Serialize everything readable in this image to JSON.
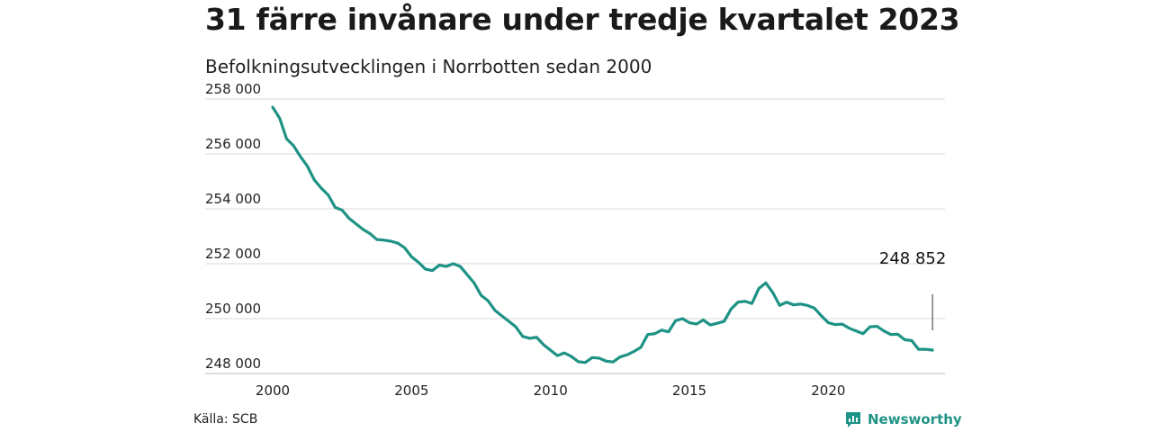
{
  "header": {
    "title": "31 färre invånare under tredje kvartalet 2023",
    "subtitle": "Befolkningsutvecklingen i Norrbotten sedan 2000"
  },
  "footer": {
    "source": "Källa: SCB",
    "brand": "Newsworthy"
  },
  "colors": {
    "line": "#1e9385",
    "grid": "#d9d9d9",
    "brand": "#1e9385"
  },
  "chart_data": {
    "type": "line",
    "title": "31 färre invånare under tredje kvartalet 2023",
    "subtitle": "Befolkningsutvecklingen i Norrbotten sedan 2000",
    "xlim": [
      2000,
      2024.2
    ],
    "ylim": [
      248000,
      258000
    ],
    "x_ticks": [
      2000,
      2005,
      2010,
      2015,
      2020
    ],
    "x_tick_labels": [
      "2000",
      "2005",
      "2010",
      "2015",
      "2020"
    ],
    "y_ticks": [
      248000,
      250000,
      252000,
      254000,
      256000,
      258000
    ],
    "y_tick_labels": [
      "248 000",
      "250 000",
      "252 000",
      "254 000",
      "256 000",
      "258 000"
    ],
    "grid": "horizontal",
    "annotation": {
      "x": 2023.75,
      "y": 248852,
      "label": "248 852"
    },
    "series": [
      {
        "x": [
          2000.0,
          2000.25,
          2000.5,
          2000.75,
          2001.0,
          2001.25,
          2001.5,
          2001.75,
          2002.0,
          2002.25,
          2002.5,
          2002.75,
          2003.0,
          2003.25,
          2003.5,
          2003.75,
          2004.0,
          2004.25,
          2004.5,
          2004.75,
          2005.0,
          2005.25,
          2005.5,
          2005.75,
          2006.0,
          2006.25,
          2006.5,
          2006.75,
          2007.0,
          2007.25,
          2007.5,
          2007.75,
          2008.0,
          2008.25,
          2008.5,
          2008.75,
          2009.0,
          2009.25,
          2009.5,
          2009.75,
          2010.0,
          2010.25,
          2010.5,
          2010.75,
          2011.0,
          2011.25,
          2011.5,
          2011.75,
          2012.0,
          2012.25,
          2012.5,
          2012.75,
          2013.0,
          2013.25,
          2013.5,
          2013.75,
          2014.0,
          2014.25,
          2014.5,
          2014.75,
          2015.0,
          2015.25,
          2015.5,
          2015.75,
          2016.0,
          2016.25,
          2016.5,
          2016.75,
          2017.0,
          2017.25,
          2017.5,
          2017.75,
          2018.0,
          2018.25,
          2018.5,
          2018.75,
          2019.0,
          2019.25,
          2019.5,
          2019.75,
          2020.0,
          2020.25,
          2020.5,
          2020.75,
          2021.0,
          2021.25,
          2021.5,
          2021.75,
          2022.0,
          2022.25,
          2022.5,
          2022.75,
          2023.0,
          2023.25,
          2023.5,
          2023.75
        ],
        "values": [
          257700,
          257300,
          256550,
          256300,
          255900,
          255550,
          255050,
          254750,
          254500,
          254050,
          253950,
          253650,
          253450,
          253250,
          253100,
          252880,
          252860,
          252820,
          252750,
          252580,
          252250,
          252050,
          251800,
          251750,
          251950,
          251900,
          252000,
          251900,
          251600,
          251300,
          250850,
          250650,
          250300,
          250100,
          249900,
          249700,
          249350,
          249280,
          249320,
          249050,
          248850,
          248650,
          248750,
          248620,
          248430,
          248400,
          248580,
          248560,
          248450,
          248420,
          248600,
          248680,
          248800,
          248950,
          249420,
          249450,
          249580,
          249520,
          249920,
          250000,
          249850,
          249800,
          249950,
          249770,
          249830,
          249900,
          250350,
          250600,
          250630,
          250550,
          251100,
          251300,
          250950,
          250480,
          250600,
          250500,
          250530,
          250480,
          250380,
          250100,
          249850,
          249780,
          249800,
          249650,
          249550,
          249450,
          249700,
          249720,
          249550,
          249420,
          249430,
          249230,
          249200,
          248880,
          248883,
          248852
        ]
      }
    ]
  }
}
